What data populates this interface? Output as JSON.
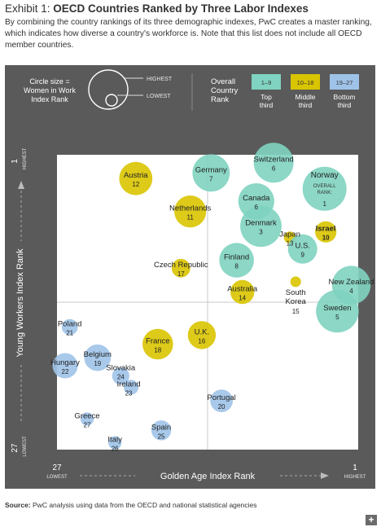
{
  "header": {
    "exhibit_label": "Exhibit 1: ",
    "title": "OECD Countries Ranked by Three Labor Indexes",
    "description": "By combining the country rankings of its three demographic indexes, PwC creates a master ranking, which indicates how diverse a country's workforce is. Note that this list does not include all OECD member countries."
  },
  "legend": {
    "size_label_lines": [
      "Circle size =",
      "Women in Work",
      "Index Rank"
    ],
    "size_highest": "HIGHEST",
    "size_lowest": "LOWEST",
    "overall_label_lines": [
      "Overall",
      "Country",
      "Rank"
    ],
    "groups": [
      {
        "range": "1–9",
        "caption_lines": [
          "Top",
          "third"
        ],
        "color": "#7fd3c0"
      },
      {
        "range": "10–18",
        "caption_lines": [
          "Middle",
          "third"
        ],
        "color": "#d9c400"
      },
      {
        "range": "19–27",
        "caption_lines": [
          "Bottom",
          "third"
        ],
        "color": "#9fc3e8"
      }
    ]
  },
  "footer": {
    "source_label": "Source:",
    "source_text": " PwC analysis using data from the OECD and national statistical agencies",
    "plus_icon": "+"
  },
  "chart_data": {
    "type": "scatter",
    "xlabel": "Golden Age Index Rank",
    "ylabel": "Young Workers Index Rank",
    "x_ticks": {
      "left_value": "27",
      "left_label": "LOWEST",
      "right_value": "1",
      "right_label": "HIGHEST"
    },
    "y_ticks": {
      "top_value": "1",
      "top_label": "HIGHEST",
      "bottom_value": "27",
      "bottom_label": "LOWEST"
    },
    "xlim": [
      27,
      1
    ],
    "ylim": [
      27,
      1
    ],
    "grid": true,
    "overall_rank_note_lines": [
      "OVERALL",
      "RANK:"
    ],
    "points": [
      {
        "country": "Switzerland",
        "overall_rank": 6,
        "x": 8.3,
        "y": 1.7,
        "women_rank": 5,
        "group": 0
      },
      {
        "country": "Germany",
        "overall_rank": 7,
        "x": 13.7,
        "y": 2.6,
        "women_rank": 7,
        "group": 0
      },
      {
        "country": "Austria",
        "overall_rank": 12,
        "x": 20.2,
        "y": 3.1,
        "women_rank": 10,
        "group": 1
      },
      {
        "country": "Norway",
        "overall_rank": 1,
        "x": 3.9,
        "y": 4.0,
        "women_rank": 2,
        "group": 0
      },
      {
        "country": "Canada",
        "overall_rank": 6,
        "x": 9.8,
        "y": 5.1,
        "women_rank": 8,
        "group": 0
      },
      {
        "country": "Netherlands",
        "overall_rank": 11,
        "x": 15.5,
        "y": 6.0,
        "women_rank": 11,
        "group": 1
      },
      {
        "country": "Denmark",
        "overall_rank": 3,
        "x": 9.4,
        "y": 7.3,
        "women_rank": 4,
        "group": 0
      },
      {
        "country": "Israel",
        "overall_rank": 10,
        "x": 3.8,
        "y": 7.8,
        "women_rank": 19,
        "group": 1
      },
      {
        "country": "Japan",
        "overall_rank": 13,
        "x": 6.9,
        "y": 8.3,
        "women_rank": 26,
        "group": 1
      },
      {
        "country": "U.S.",
        "overall_rank": 9,
        "x": 5.8,
        "y": 9.3,
        "women_rank": 13,
        "group": 0
      },
      {
        "country": "Finland",
        "overall_rank": 8,
        "x": 11.5,
        "y": 10.3,
        "women_rank": 9,
        "group": 0
      },
      {
        "country": "Czech Republic",
        "overall_rank": 17,
        "x": 16.3,
        "y": 11.0,
        "women_rank": 21,
        "group": 1
      },
      {
        "country": "South Korea",
        "overall_rank": 15,
        "x": 6.4,
        "y": 12.2,
        "women_rank": 27,
        "group": 1
      },
      {
        "country": "New Zealand",
        "overall_rank": 4,
        "x": 1.6,
        "y": 12.5,
        "women_rank": 6,
        "group": 0
      },
      {
        "country": "Australia",
        "overall_rank": 14,
        "x": 11.0,
        "y": 13.1,
        "women_rank": 17,
        "group": 1
      },
      {
        "country": "Sweden",
        "overall_rank": 5,
        "x": 2.8,
        "y": 14.8,
        "women_rank": 3,
        "group": 0
      },
      {
        "country": "Poland",
        "overall_rank": 21,
        "x": 25.9,
        "y": 16.2,
        "women_rank": 23,
        "group": 2
      },
      {
        "country": "U.K.",
        "overall_rank": 16,
        "x": 14.5,
        "y": 16.9,
        "women_rank": 14,
        "group": 1
      },
      {
        "country": "France",
        "overall_rank": 18,
        "x": 18.3,
        "y": 17.7,
        "women_rank": 12,
        "group": 1
      },
      {
        "country": "Belgium",
        "overall_rank": 19,
        "x": 23.5,
        "y": 18.9,
        "women_rank": 15,
        "group": 2
      },
      {
        "country": "Hungary",
        "overall_rank": 22,
        "x": 26.3,
        "y": 19.6,
        "women_rank": 16,
        "group": 2
      },
      {
        "country": "Slovakia",
        "overall_rank": 24,
        "x": 21.5,
        "y": 20.5,
        "women_rank": 22,
        "group": 2
      },
      {
        "country": "Ireland",
        "overall_rank": 23,
        "x": 20.6,
        "y": 21.5,
        "women_rank": 24,
        "group": 2
      },
      {
        "country": "Portugal",
        "overall_rank": 20,
        "x": 12.8,
        "y": 22.7,
        "women_rank": 18,
        "group": 2
      },
      {
        "country": "Greece",
        "overall_rank": 27,
        "x": 24.4,
        "y": 24.3,
        "women_rank": 25,
        "group": 2
      },
      {
        "country": "Spain",
        "overall_rank": 25,
        "x": 18.0,
        "y": 25.3,
        "women_rank": 20,
        "group": 2
      },
      {
        "country": "Italy",
        "overall_rank": 26,
        "x": 22.0,
        "y": 26.4,
        "women_rank": 25,
        "group": 2
      }
    ]
  }
}
